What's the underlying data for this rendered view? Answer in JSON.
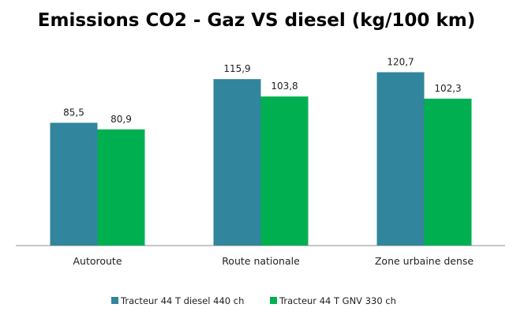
{
  "chart_data": {
    "type": "bar",
    "title": "Emissions CO2 - Gaz VS diesel (kg/100 km)",
    "categories": [
      "Autoroute",
      "Route nationale",
      "Zone urbaine dense"
    ],
    "series": [
      {
        "name": "Tracteur 44 T diesel 440 ch",
        "color": "#31859c",
        "values": [
          85.5,
          115.9,
          120.7
        ],
        "labels": [
          "85,5",
          "115,9",
          "120,7"
        ]
      },
      {
        "name": "Tracteur 44 T GNV 330 ch",
        "color": "#00b050",
        "values": [
          80.9,
          103.8,
          102.3
        ],
        "labels": [
          "80,9",
          "103,8",
          "102,3"
        ]
      }
    ],
    "ylim": [
      0,
      138
    ],
    "grid": false,
    "legend_position": "bottom",
    "xlabel": "",
    "ylabel": ""
  }
}
